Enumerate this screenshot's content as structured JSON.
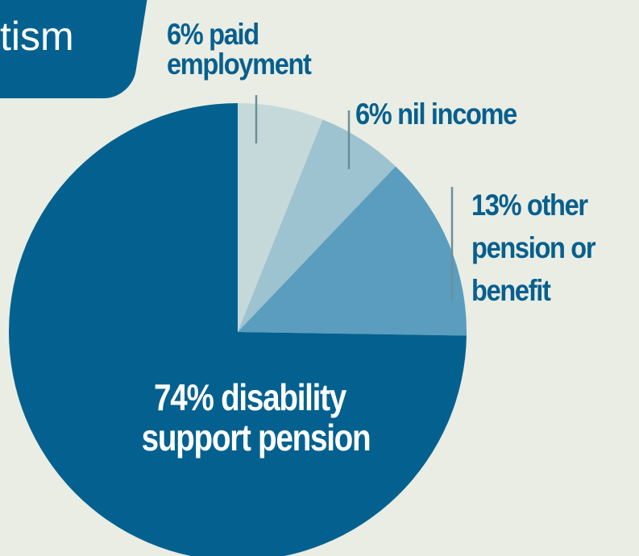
{
  "title": {
    "text": "vice\ntism"
  },
  "chart_data": {
    "type": "pie",
    "slices": [
      {
        "label": "6% paid\nemployment",
        "value": 6,
        "color": "#c5d9db"
      },
      {
        "label": "6% nil income",
        "value": 6,
        "color": "#9dc2d0"
      },
      {
        "label": "13% other\npension or\nbenefit",
        "value": 13,
        "color": "#5b9dbe"
      },
      {
        "label": "74% disability\nsupport pension",
        "value": 74,
        "color": "#04618f"
      }
    ],
    "label_color": "#075f8e",
    "leader_color": "#6b8f99"
  }
}
